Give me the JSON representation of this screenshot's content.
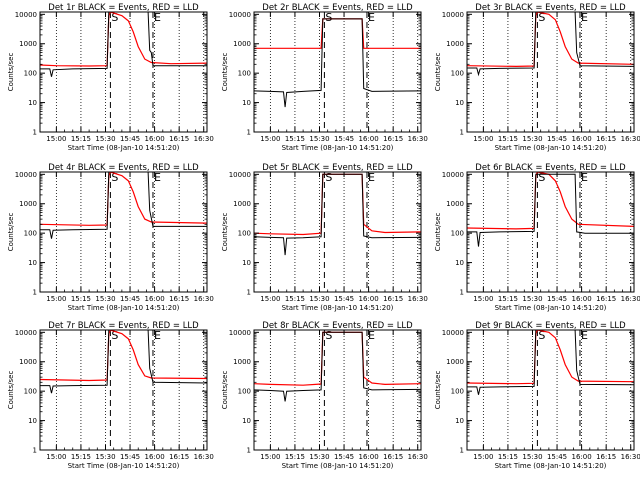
{
  "chart_data": {
    "type": "line",
    "x_tick_labels": [
      "15:00",
      "15:15",
      "15:30",
      "15:45",
      "16:00",
      "16:15",
      "16:30"
    ],
    "x_ticks_min": [
      0,
      15,
      30,
      45,
      60,
      75,
      90
    ],
    "xlim_min": [
      -10,
      92
    ],
    "y_tick_labels": [
      "1",
      "10",
      "100",
      "1000",
      "10000"
    ],
    "y_tick_values": [
      1,
      10,
      100,
      1000,
      10000
    ],
    "ylim": [
      1,
      12000
    ],
    "scale_y": "log",
    "xlabel": "Start Time (08-Jan-10 14:51:20)",
    "ylabel": "Counts/sec",
    "colors": {
      "events": "#000000",
      "lld": "#ff0000"
    },
    "panels": [
      {
        "title": "Det 1r  BLACK = Events, RED = LLD",
        "marks": [
          {
            "label": "S",
            "x": 33
          },
          {
            "label": "E",
            "x": 59
          }
        ],
        "events": [
          [
            -10,
            140
          ],
          [
            -4,
            140
          ],
          [
            -3,
            75
          ],
          [
            -2,
            130
          ],
          [
            10,
            140
          ],
          [
            31,
            145
          ],
          [
            31.5,
            1200
          ],
          [
            32,
            12000
          ],
          [
            56,
            12000
          ],
          [
            57,
            600
          ],
          [
            58,
            500
          ],
          [
            59,
            180
          ],
          [
            92,
            180
          ]
        ],
        "lld": [
          [
            -10,
            190
          ],
          [
            0,
            180
          ],
          [
            20,
            175
          ],
          [
            31,
            180
          ],
          [
            32,
            9000
          ],
          [
            33,
            12000
          ],
          [
            40,
            9000
          ],
          [
            44,
            6000
          ],
          [
            47,
            2500
          ],
          [
            50,
            800
          ],
          [
            54,
            300
          ],
          [
            58,
            230
          ],
          [
            70,
            210
          ],
          [
            92,
            220
          ]
        ]
      },
      {
        "title": "Det 2r  BLACK = Events, RED = LLD",
        "marks": [
          {
            "label": "S",
            "x": 33
          },
          {
            "label": "E",
            "x": 59
          }
        ],
        "events": [
          [
            -10,
            25
          ],
          [
            0,
            24
          ],
          [
            8,
            23
          ],
          [
            9,
            7
          ],
          [
            10,
            22
          ],
          [
            20,
            24
          ],
          [
            31,
            26
          ],
          [
            32,
            7000
          ],
          [
            56,
            7000
          ],
          [
            57,
            30
          ],
          [
            62,
            24
          ],
          [
            92,
            25
          ]
        ],
        "lld": [
          [
            -10,
            700
          ],
          [
            31,
            700
          ],
          [
            32,
            7000
          ],
          [
            56,
            7000
          ],
          [
            57,
            700
          ],
          [
            92,
            700
          ]
        ]
      },
      {
        "title": "Det 3r  BLACK = Events, RED = LLD",
        "marks": [
          {
            "label": "S",
            "x": 33
          },
          {
            "label": "E",
            "x": 59
          }
        ],
        "events": [
          [
            -10,
            150
          ],
          [
            -4,
            150
          ],
          [
            -3,
            90
          ],
          [
            -2,
            140
          ],
          [
            10,
            145
          ],
          [
            31,
            150
          ],
          [
            31.5,
            1200
          ],
          [
            32,
            12000
          ],
          [
            56,
            12000
          ],
          [
            57,
            500
          ],
          [
            59,
            180
          ],
          [
            92,
            170
          ]
        ],
        "lld": [
          [
            -10,
            180
          ],
          [
            20,
            170
          ],
          [
            31,
            175
          ],
          [
            32,
            9000
          ],
          [
            33,
            12000
          ],
          [
            40,
            10000
          ],
          [
            44,
            6500
          ],
          [
            47,
            2500
          ],
          [
            50,
            800
          ],
          [
            54,
            300
          ],
          [
            58,
            220
          ],
          [
            92,
            200
          ]
        ]
      },
      {
        "title": "Det 4r  BLACK = Events, RED = LLD",
        "marks": [
          {
            "label": "S",
            "x": 33
          },
          {
            "label": "E",
            "x": 59
          }
        ],
        "events": [
          [
            -10,
            130
          ],
          [
            -4,
            130
          ],
          [
            -3,
            65
          ],
          [
            -2,
            125
          ],
          [
            10,
            130
          ],
          [
            31,
            135
          ],
          [
            31.5,
            1200
          ],
          [
            32,
            12000
          ],
          [
            56,
            12000
          ],
          [
            57,
            600
          ],
          [
            59,
            170
          ],
          [
            92,
            170
          ]
        ],
        "lld": [
          [
            -10,
            200
          ],
          [
            20,
            185
          ],
          [
            31,
            190
          ],
          [
            32,
            9000
          ],
          [
            33,
            12000
          ],
          [
            40,
            9000
          ],
          [
            44,
            6000
          ],
          [
            47,
            2500
          ],
          [
            50,
            800
          ],
          [
            54,
            300
          ],
          [
            58,
            240
          ],
          [
            92,
            220
          ]
        ]
      },
      {
        "title": "Det 5r  BLACK = Events, RED = LLD",
        "marks": [
          {
            "label": "S",
            "x": 33
          },
          {
            "label": "E",
            "x": 59
          }
        ],
        "events": [
          [
            -10,
            75
          ],
          [
            0,
            72
          ],
          [
            8,
            70
          ],
          [
            9,
            18
          ],
          [
            10,
            68
          ],
          [
            20,
            70
          ],
          [
            31,
            75
          ],
          [
            32,
            10000
          ],
          [
            56,
            10000
          ],
          [
            57,
            80
          ],
          [
            62,
            70
          ],
          [
            92,
            72
          ]
        ],
        "lld": [
          [
            -10,
            100
          ],
          [
            0,
            95
          ],
          [
            20,
            90
          ],
          [
            31,
            100
          ],
          [
            32,
            10000
          ],
          [
            56,
            10000
          ],
          [
            57,
            200
          ],
          [
            62,
            120
          ],
          [
            70,
            105
          ],
          [
            92,
            110
          ]
        ]
      },
      {
        "title": "Det 6r  BLACK = Events, RED = LLD",
        "marks": [
          {
            "label": "S",
            "x": 33
          },
          {
            "label": "E",
            "x": 59
          }
        ],
        "events": [
          [
            -10,
            110
          ],
          [
            -4,
            110
          ],
          [
            -3,
            35
          ],
          [
            -2,
            105
          ],
          [
            10,
            110
          ],
          [
            31,
            115
          ],
          [
            32,
            10000
          ],
          [
            56,
            10000
          ],
          [
            57,
            110
          ],
          [
            62,
            100
          ],
          [
            92,
            100
          ]
        ],
        "lld": [
          [
            -10,
            150
          ],
          [
            20,
            140
          ],
          [
            31,
            145
          ],
          [
            32,
            9000
          ],
          [
            33,
            12000
          ],
          [
            40,
            10000
          ],
          [
            44,
            6000
          ],
          [
            47,
            2500
          ],
          [
            50,
            800
          ],
          [
            54,
            300
          ],
          [
            58,
            200
          ],
          [
            92,
            170
          ]
        ]
      },
      {
        "title": "Det 7r  BLACK = Events, RED = LLD",
        "marks": [
          {
            "label": "S",
            "x": 33
          },
          {
            "label": "E",
            "x": 59
          }
        ],
        "events": [
          [
            -10,
            155
          ],
          [
            -4,
            155
          ],
          [
            -3,
            85
          ],
          [
            -2,
            150
          ],
          [
            10,
            155
          ],
          [
            31,
            160
          ],
          [
            31.5,
            1200
          ],
          [
            32,
            12000
          ],
          [
            56,
            12000
          ],
          [
            57,
            600
          ],
          [
            59,
            200
          ],
          [
            92,
            190
          ]
        ],
        "lld": [
          [
            -10,
            250
          ],
          [
            20,
            230
          ],
          [
            31,
            240
          ],
          [
            32,
            9000
          ],
          [
            33,
            12000
          ],
          [
            40,
            9000
          ],
          [
            44,
            6000
          ],
          [
            47,
            2500
          ],
          [
            50,
            800
          ],
          [
            54,
            330
          ],
          [
            58,
            280
          ],
          [
            92,
            270
          ]
        ]
      },
      {
        "title": "Det 8r  BLACK = Events, RED = LLD",
        "marks": [
          {
            "label": "S",
            "x": 33
          },
          {
            "label": "E",
            "x": 59
          }
        ],
        "events": [
          [
            -10,
            110
          ],
          [
            0,
            105
          ],
          [
            8,
            100
          ],
          [
            9,
            45
          ],
          [
            10,
            100
          ],
          [
            20,
            105
          ],
          [
            31,
            110
          ],
          [
            32,
            10000
          ],
          [
            56,
            10000
          ],
          [
            57,
            130
          ],
          [
            62,
            110
          ],
          [
            92,
            115
          ]
        ],
        "lld": [
          [
            -10,
            180
          ],
          [
            0,
            170
          ],
          [
            20,
            160
          ],
          [
            31,
            175
          ],
          [
            32,
            10000
          ],
          [
            56,
            10000
          ],
          [
            57,
            300
          ],
          [
            62,
            190
          ],
          [
            70,
            170
          ],
          [
            92,
            180
          ]
        ]
      },
      {
        "title": "Det 9r  BLACK = Events, RED = LLD",
        "marks": [
          {
            "label": "S",
            "x": 33
          },
          {
            "label": "E",
            "x": 59
          }
        ],
        "events": [
          [
            -10,
            140
          ],
          [
            -4,
            140
          ],
          [
            -3,
            75
          ],
          [
            -2,
            135
          ],
          [
            10,
            140
          ],
          [
            31,
            145
          ],
          [
            31.5,
            1200
          ],
          [
            32,
            12000
          ],
          [
            56,
            12000
          ],
          [
            57,
            500
          ],
          [
            59,
            170
          ],
          [
            92,
            165
          ]
        ],
        "lld": [
          [
            -10,
            190
          ],
          [
            20,
            180
          ],
          [
            31,
            185
          ],
          [
            32,
            9000
          ],
          [
            33,
            12000
          ],
          [
            40,
            10000
          ],
          [
            44,
            6500
          ],
          [
            47,
            2500
          ],
          [
            50,
            800
          ],
          [
            54,
            300
          ],
          [
            58,
            220
          ],
          [
            92,
            210
          ]
        ]
      }
    ]
  }
}
